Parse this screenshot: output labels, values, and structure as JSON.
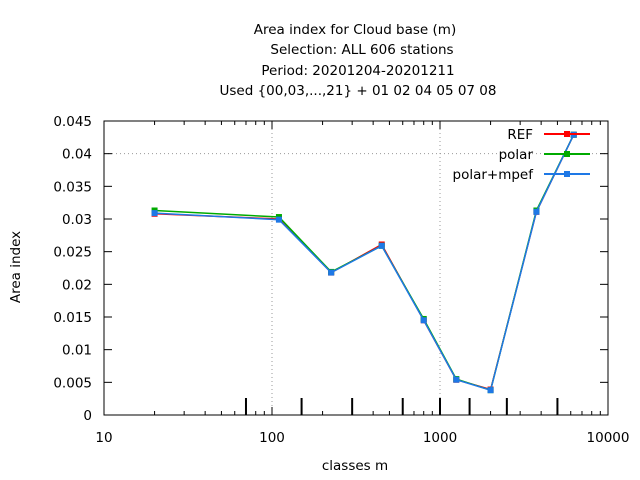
{
  "chart_data": {
    "type": "line",
    "title_lines": [
      "Area index  for Cloud base (m)",
      "Selection: ALL    606 stations",
      "Period: 20201204-20201211",
      "Used {00,03,...,21} + 01 02 04 05 07 08"
    ],
    "xlabel": "classes m",
    "ylabel": "Area index",
    "xscale": "log",
    "xlim": [
      10,
      10000
    ],
    "ylim": [
      0,
      0.045
    ],
    "xticks": [
      10,
      100,
      1000,
      10000
    ],
    "xtick_labels": [
      "10",
      "100",
      "1000",
      "10000"
    ],
    "yticks": [
      0,
      0.005,
      0.01,
      0.015,
      0.02,
      0.025,
      0.03,
      0.035,
      0.04,
      0.045
    ],
    "ytick_labels": [
      "0",
      "0.005",
      "0.01",
      "0.015",
      "0.02",
      "0.025",
      "0.03",
      "0.035",
      "0.04",
      "0.045"
    ],
    "grid": "dotted at x=100, 1000 and y=0.04",
    "legend_position": "top-right",
    "bottom_markers": [
      70,
      150,
      300,
      600,
      1000,
      1500,
      2500,
      5000
    ],
    "series": [
      {
        "name": "REF",
        "color": "#ff0000",
        "x": [
          20,
          110,
          225,
          450,
          800,
          1250,
          2000,
          3750,
          6250
        ],
        "y": [
          0.0308,
          0.03,
          0.0218,
          0.0261,
          0.0145,
          0.0054,
          0.0039,
          0.0311,
          0.0429
        ]
      },
      {
        "name": "polar",
        "color": "#00aa00",
        "x": [
          20,
          110,
          225,
          450,
          800,
          1250,
          2000,
          3750,
          6250
        ],
        "y": [
          0.0313,
          0.0303,
          0.0219,
          0.0259,
          0.0147,
          0.0055,
          0.0038,
          0.0313,
          0.0429
        ]
      },
      {
        "name": "polar+mpef",
        "color": "#1e78e6",
        "x": [
          20,
          110,
          225,
          450,
          800,
          1250,
          2000,
          3750,
          6250
        ],
        "y": [
          0.0309,
          0.0299,
          0.0218,
          0.0259,
          0.0145,
          0.0054,
          0.0038,
          0.0311,
          0.0429
        ]
      }
    ]
  }
}
